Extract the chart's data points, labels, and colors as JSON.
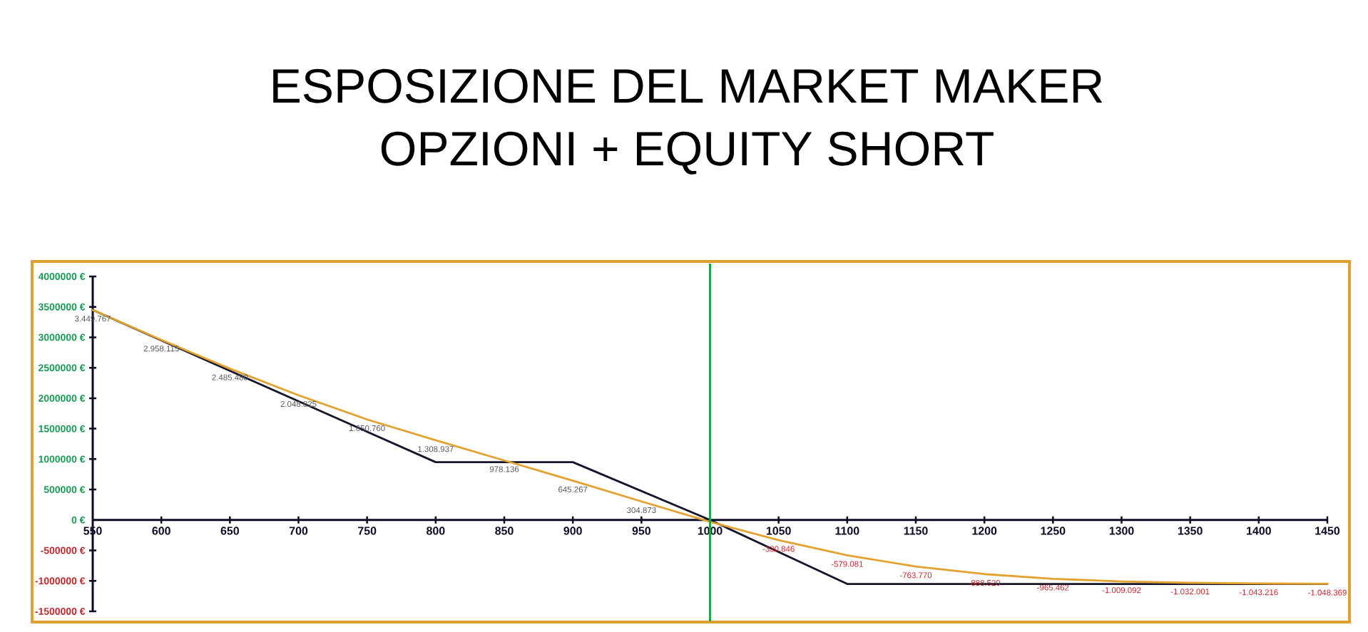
{
  "chart_data": {
    "type": "line",
    "title": "ESPOSIZIONE DEL MARKET MAKER",
    "subtitle": "OPZIONI + EQUITY SHORT",
    "x": [
      550,
      600,
      650,
      700,
      750,
      800,
      850,
      900,
      950,
      1000,
      1050,
      1100,
      1150,
      1200,
      1250,
      1300,
      1350,
      1400,
      1450
    ],
    "series": [
      {
        "color": "#14142b",
        "x": [
          550,
          800,
          900,
          1000,
          1100,
          1450
        ],
        "values": [
          3450000,
          950000,
          950000,
          0,
          -1050000,
          -1050000
        ]
      },
      {
        "color": "#e3a12f",
        "values": [
          3449767,
          2958115,
          2485480,
          2048825,
          1650760,
          1308937,
          978136,
          645267,
          304873,
          -30000,
          -330846,
          -579081,
          -763770,
          -888520,
          -965462,
          -1009092,
          -1032001,
          -1043216,
          -1048369
        ],
        "value_labels": [
          "3.449.767",
          "2.958.115",
          "2.485.480",
          "2.048.825",
          "1.650.760",
          "1.308.937",
          "978.136",
          "645.267",
          "304.873",
          null,
          "-330.846",
          "-579.081",
          "-763.770",
          "-888.520",
          "-965.462",
          "-1.009.092",
          "-1.032.001",
          "-1.043.216",
          "-1.048.369"
        ]
      }
    ],
    "xlim": [
      550,
      1450
    ],
    "xticks": [
      550,
      600,
      650,
      700,
      750,
      800,
      850,
      900,
      950,
      1000,
      1050,
      1100,
      1150,
      1200,
      1250,
      1300,
      1350,
      1400,
      1450
    ],
    "ylim": [
      -1500000,
      4000000
    ],
    "yticks": [
      {
        "value": -1500000,
        "label": "-1500000 €"
      },
      {
        "value": -1000000,
        "label": "-1000000 €"
      },
      {
        "value": -500000,
        "label": "-500000 €"
      },
      {
        "value": 0,
        "label": "0 €"
      },
      {
        "value": 500000,
        "label": "500000 €"
      },
      {
        "value": 1000000,
        "label": "1000000 €"
      },
      {
        "value": 1500000,
        "label": "1500000 €"
      },
      {
        "value": 2000000,
        "label": "2000000 €"
      },
      {
        "value": 2500000,
        "label": "2500000 €"
      },
      {
        "value": 3000000,
        "label": "3000000 €"
      },
      {
        "value": 3500000,
        "label": "3500000 €"
      },
      {
        "value": 4000000,
        "label": "4000000 €"
      }
    ],
    "ref_lines": [
      {
        "axis": "x",
        "value": 1000,
        "color": "#1fa64a"
      }
    ],
    "line_style": "solid"
  }
}
